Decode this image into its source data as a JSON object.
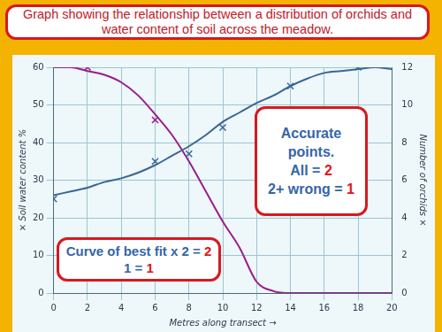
{
  "chart_data": {
    "type": "line",
    "title": "Graph showing the relationship between a distribution of orchids and water content of soil across the meadow.",
    "xlabel": "Metres along transect →",
    "ylabel": "× Soil water content %",
    "y2label": "Number of orchids ×",
    "x": [
      0,
      1,
      2,
      3,
      4,
      5,
      6,
      7,
      8,
      9,
      10,
      11,
      12,
      13,
      14,
      15,
      16,
      17,
      18,
      19,
      20
    ],
    "series": [
      {
        "color": "#3a6696",
        "type": "line",
        "marker": "none",
        "line_style": "solid",
        "values": [
          26,
          27,
          28,
          29.5,
          30.5,
          32,
          34,
          36.5,
          39,
          42,
          45.5,
          48,
          50.5,
          52.5,
          55,
          57,
          58.5,
          59,
          59.5,
          60,
          59.5
        ]
      },
      {
        "color": "#3a6696",
        "type": "scatter",
        "marker": "cross",
        "line_style": "none",
        "values": [
          25,
          null,
          null,
          null,
          null,
          null,
          35,
          null,
          37,
          null,
          44,
          null,
          null,
          null,
          55,
          null,
          null,
          null,
          60,
          null,
          null
        ]
      },
      {
        "color": "#9a1c8e",
        "type": "line",
        "marker": "none",
        "line_style": "solid",
        "axis": "y2",
        "values": [
          12,
          12,
          11.8,
          11.6,
          11.2,
          10.5,
          9.5,
          8.4,
          7,
          5.4,
          3.8,
          2.4,
          0.6,
          0.1,
          0,
          0,
          0,
          0,
          0,
          0,
          0
        ]
      },
      {
        "color": "#9a1c8e",
        "type": "scatter",
        "marker": "cross",
        "line_style": "none",
        "axis": "y2",
        "values": [
          null,
          null,
          12,
          null,
          null,
          null,
          9.2,
          null,
          null,
          null,
          null,
          null,
          null,
          null,
          null,
          null,
          null,
          null,
          null,
          null,
          null
        ]
      }
    ],
    "xlim": [
      0,
      20
    ],
    "xticks": [
      0,
      2,
      4,
      6,
      8,
      10,
      12,
      14,
      16,
      18,
      20
    ],
    "ylim": [
      0,
      60
    ],
    "yticks": [
      0,
      10,
      20,
      30,
      40,
      50,
      60
    ],
    "y2lim": [
      0,
      12
    ],
    "y2ticks": [
      0,
      2,
      4,
      6,
      8,
      10,
      12
    ],
    "grid": true,
    "annotations": [
      {
        "lines": [
          "Accurate points.",
          "All = 2",
          "2+ wrong = 1"
        ]
      },
      {
        "lines": [
          "Curve of best fit x 2 = 2",
          "1 = 1"
        ]
      }
    ]
  }
}
